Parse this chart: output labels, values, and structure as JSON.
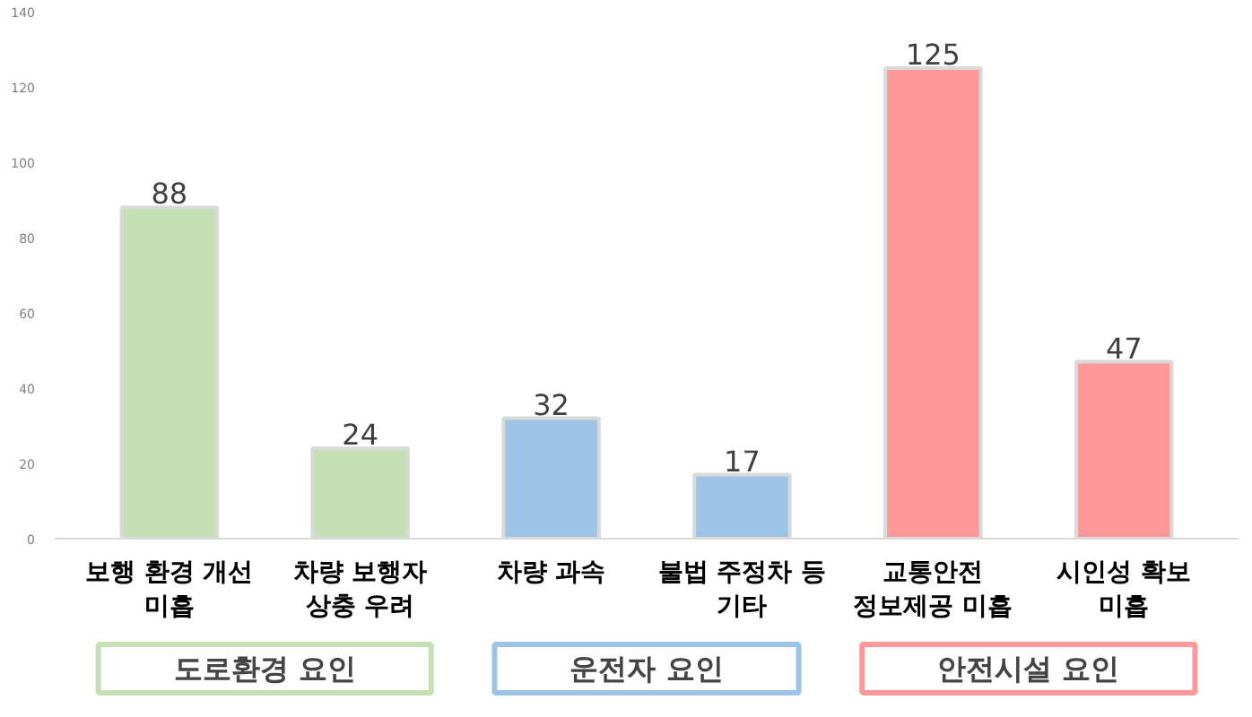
{
  "chart_data": {
    "type": "bar",
    "categories": [
      "보행 환경 개선\n미흡",
      "차량 보행자\n상충 우려",
      "차량 과속",
      "불법 주정차 등\n기타",
      "교통안전\n정보제공 미흡",
      "시인성 확보\n미흡"
    ],
    "values": [
      88,
      24,
      32,
      17,
      125,
      47
    ],
    "colors": [
      "#c5e0b4",
      "#c5e0b4",
      "#9dc3e6",
      "#9dc3e6",
      "#ff9999",
      "#ff9999"
    ],
    "ylim": [
      0,
      140
    ],
    "yticks": [
      0,
      20,
      40,
      60,
      80,
      100,
      120,
      140
    ],
    "grid": false,
    "data_labels": true,
    "annotations": [
      "도로환경 요인",
      "운전자 요인",
      "안전시설 요인"
    ]
  }
}
